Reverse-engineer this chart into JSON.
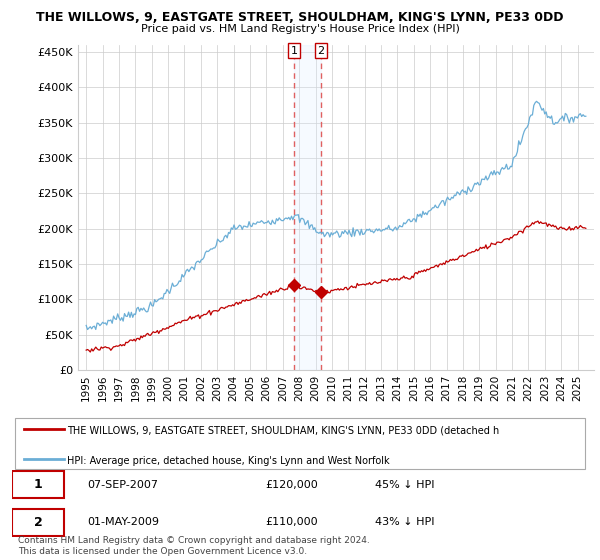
{
  "title": "THE WILLOWS, 9, EASTGATE STREET, SHOULDHAM, KING'S LYNN, PE33 0DD",
  "subtitle": "Price paid vs. HM Land Registry's House Price Index (HPI)",
  "ylim": [
    0,
    460000
  ],
  "yticks": [
    0,
    50000,
    100000,
    150000,
    200000,
    250000,
    300000,
    350000,
    400000,
    450000
  ],
  "ytick_labels": [
    "£0",
    "£50K",
    "£100K",
    "£150K",
    "£200K",
    "£250K",
    "£300K",
    "£350K",
    "£400K",
    "£450K"
  ],
  "hpi_color": "#6baed6",
  "price_color": "#c00000",
  "sale1_date": 2007.68,
  "sale1_price": 120000,
  "sale2_date": 2009.33,
  "sale2_price": 110000,
  "legend_label_price": "THE WILLOWS, 9, EASTGATE STREET, SHOULDHAM, KING'S LYNN, PE33 0DD (detached h",
  "legend_label_hpi": "HPI: Average price, detached house, King's Lynn and West Norfolk",
  "table_row1_num": "1",
  "table_row1_date": "07-SEP-2007",
  "table_row1_price": "£120,000",
  "table_row1_pct": "45% ↓ HPI",
  "table_row2_num": "2",
  "table_row2_date": "01-MAY-2009",
  "table_row2_price": "£110,000",
  "table_row2_pct": "43% ↓ HPI",
  "footnote": "Contains HM Land Registry data © Crown copyright and database right 2024.\nThis data is licensed under the Open Government Licence v3.0.",
  "background_color": "#ffffff",
  "grid_color": "#cccccc",
  "span_color": "#ddeeff",
  "vline_color": "#e06060"
}
